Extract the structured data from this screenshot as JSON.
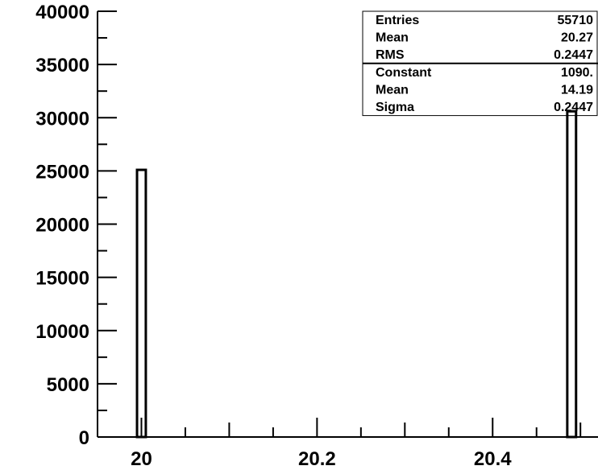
{
  "chart_data": {
    "type": "bar",
    "title": "",
    "xlabel": "",
    "ylabel": "",
    "xlim": [
      19.95,
      20.52
    ],
    "ylim": [
      0,
      40000
    ],
    "bin_width": 0.01,
    "grid": false,
    "x_ticks": [
      {
        "value": 20.0,
        "label": "20"
      },
      {
        "value": 20.2,
        "label": "20.2"
      },
      {
        "value": 20.4,
        "label": "20.4"
      }
    ],
    "y_ticks": [
      {
        "value": 0,
        "label": "0"
      },
      {
        "value": 5000,
        "label": "5000"
      },
      {
        "value": 10000,
        "label": "10000"
      },
      {
        "value": 15000,
        "label": "15000"
      },
      {
        "value": 20000,
        "label": "20000"
      },
      {
        "value": 25000,
        "label": "25000"
      },
      {
        "value": 30000,
        "label": "30000"
      },
      {
        "value": 35000,
        "label": "35000"
      },
      {
        "value": 40000,
        "label": "40000"
      }
    ],
    "bins": [
      {
        "x": 20.0,
        "value": 25100
      },
      {
        "x": 20.49,
        "value": 30600
      }
    ]
  },
  "stats_box": {
    "placement": "top-right",
    "rows": [
      {
        "label": "Entries",
        "value": "55710"
      },
      {
        "label": "Mean",
        "value": "20.27"
      },
      {
        "label": "RMS",
        "value": "0.2447"
      }
    ],
    "fit_rows": [
      {
        "label": "Constant",
        "value": "1090."
      },
      {
        "label": "Mean",
        "value": "14.19"
      },
      {
        "label": "Sigma",
        "value": "0.2447"
      }
    ]
  }
}
